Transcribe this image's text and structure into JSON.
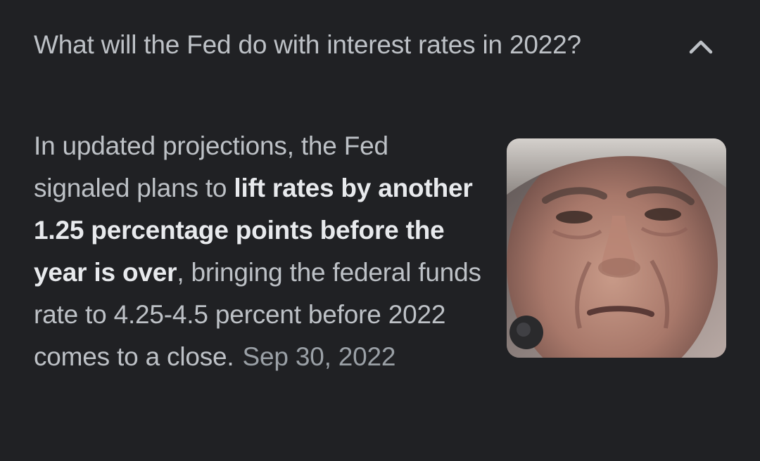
{
  "question": {
    "text": "What will the Fed do with interest rates in 2022?",
    "expanded": true,
    "toggle_icon": "chevron-up-icon"
  },
  "answer": {
    "part1": "In updated projections, the Fed signaled plans to ",
    "bold_segment": "lift rates by another 1.25 percentage points before the year is over",
    "part2": ", bringing the federal funds rate to 4.25-4.5 percent before 2022 comes to a close.",
    "date": "Sep 30, 2022"
  },
  "thumbnail": {
    "subject": "close-up portrait of an older man with gray hair",
    "icon": "photo-thumbnail"
  },
  "colors": {
    "background": "#202124",
    "text": "#bdc1c6",
    "bold_text": "#e8eaed",
    "date_text": "#9aa0a6"
  }
}
